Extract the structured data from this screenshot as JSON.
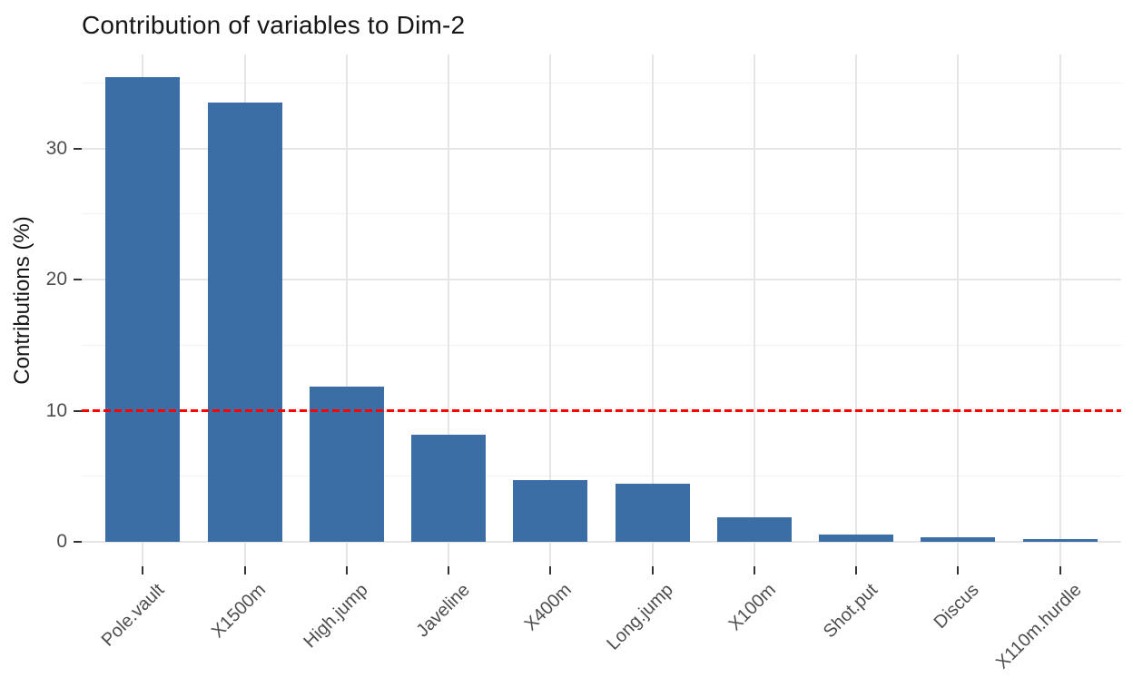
{
  "chart_data": {
    "type": "bar",
    "title": "Contribution of variables to Dim-2",
    "xlabel": "",
    "ylabel": "Contributions (%)",
    "categories": [
      "Pole.vault",
      "X1500m",
      "High.jump",
      "Javeline",
      "X400m",
      "Long.jump",
      "X100m",
      "Shot.put",
      "Discus",
      "X110m.hurdle"
    ],
    "values": [
      35.4,
      33.5,
      11.8,
      8.2,
      4.7,
      4.4,
      1.9,
      0.55,
      0.35,
      0.2
    ],
    "y_ticks": [
      0,
      10,
      20,
      30
    ],
    "y_minor_ticks": [
      5,
      15,
      25,
      35
    ],
    "ylim": [
      -1.9,
      37.2
    ],
    "x_tick_angle": 45,
    "grid": "on",
    "legend": "none",
    "reference_line": {
      "value": 10,
      "style": "dashed",
      "color": "#FF0000"
    }
  },
  "style_colors": {
    "bar_fill": "#3A6EA5",
    "reference_red": "#FF0000",
    "axis_text": "#4D4D4D",
    "title_text": "#161616",
    "grid_major": "#E6E6E6",
    "grid_minor": "#F1F1F1",
    "tick_mark": "#333333",
    "background": "#FFFFFF"
  }
}
